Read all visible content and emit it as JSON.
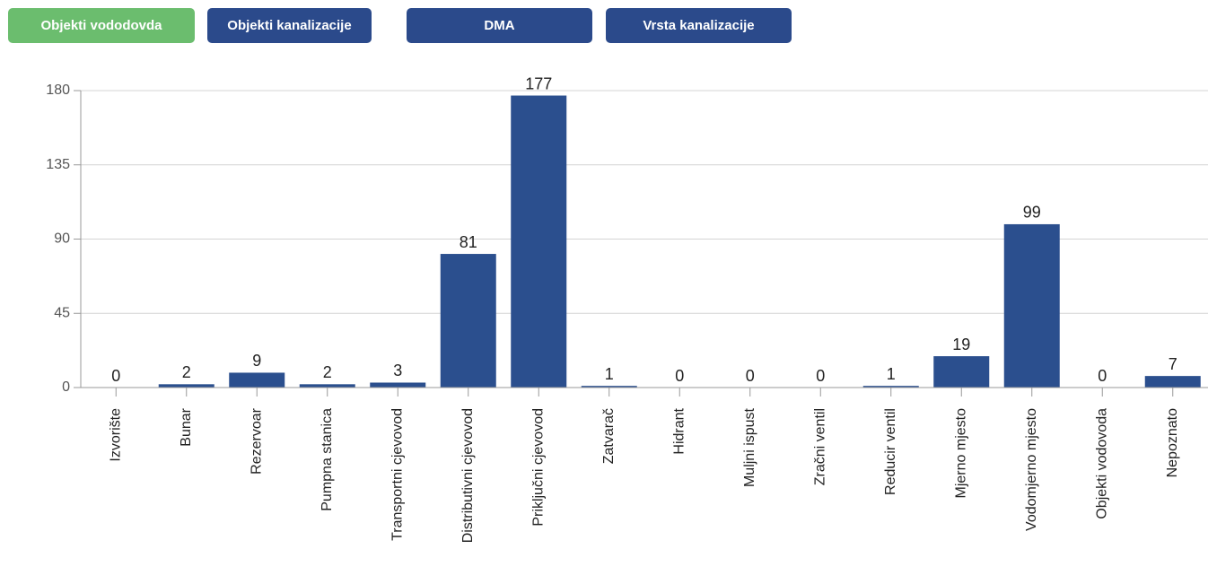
{
  "tabs": [
    {
      "label": "Objekti vododovda",
      "active": true
    },
    {
      "label": "Objekti kanalizacije",
      "active": false
    },
    {
      "label": "DMA",
      "active": false
    },
    {
      "label": "Vrsta kanalizacije",
      "active": false
    }
  ],
  "chart_data": {
    "type": "bar",
    "categories": [
      "Izvorište",
      "Bunar",
      "Rezervoar",
      "Pumpna stanica",
      "Transportni cjevovod",
      "Distributivni cjevovod",
      "Priključni cjevovod",
      "Zatvarač",
      "Hidrant",
      "Muljni ispust",
      "Zračni ventil",
      "Reducir ventil",
      "Mjerno mjesto",
      "Vodomjerno mjesto",
      "Objekti vodovoda",
      "Nepoznato"
    ],
    "values": [
      0,
      2,
      9,
      2,
      3,
      81,
      177,
      1,
      0,
      0,
      0,
      1,
      19,
      99,
      0,
      7
    ],
    "color": "#2b4f8e",
    "ylim": [
      0,
      180
    ],
    "yticks": [
      0,
      45,
      90,
      135,
      180
    ],
    "grid": true
  }
}
